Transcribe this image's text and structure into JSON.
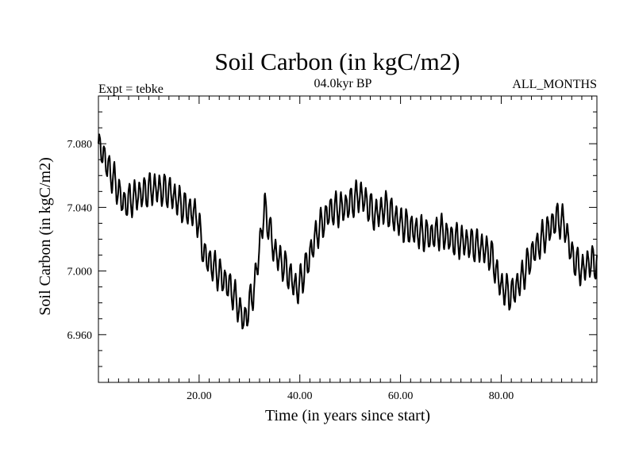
{
  "chart_data": {
    "type": "line",
    "title": "Soil Carbon (in kgC/m2)",
    "subtitle": "04.0kyr BP",
    "left_note": "Expt = tebke",
    "right_note": "ALL_MONTHS",
    "xlabel": "Time (in years since start)",
    "ylabel": "Soil Carbon (in kgC/m2)",
    "xlim": [
      0,
      99
    ],
    "ylim": [
      6.93,
      7.11
    ],
    "xticks": [
      20,
      40,
      60,
      80
    ],
    "xtick_labels": [
      "20.00",
      "40.00",
      "60.00",
      "80.00"
    ],
    "yticks": [
      6.96,
      7.0,
      7.04,
      7.08
    ],
    "ytick_labels": [
      "6.960",
      "7.000",
      "7.040",
      "7.080"
    ],
    "grid": false,
    "series": [
      {
        "name": "soil carbon",
        "seasonal_amplitude": 0.009,
        "cycle_length_years": 1,
        "baseline": {
          "x": [
            0,
            0.5,
            1.5,
            3,
            5,
            8,
            11,
            14,
            17,
            19.5,
            21,
            24,
            26.5,
            29,
            31,
            33,
            35,
            37.5,
            39.5,
            41.5,
            43.5,
            46,
            49,
            52,
            55,
            57,
            60,
            63,
            66,
            68,
            70,
            73,
            76,
            78,
            80,
            82,
            84,
            86,
            88.5,
            91,
            92.5,
            94,
            96,
            97.5,
            99
          ],
          "y": [
            7.075,
            7.078,
            7.068,
            7.058,
            7.042,
            7.048,
            7.052,
            7.05,
            7.04,
            7.035,
            7.01,
            6.998,
            6.988,
            6.968,
            6.99,
            7.04,
            7.012,
            7.0,
            6.988,
            7.005,
            7.025,
            7.038,
            7.04,
            7.048,
            7.035,
            7.04,
            7.03,
            7.025,
            7.022,
            7.025,
            7.02,
            7.018,
            7.015,
            7.01,
            6.99,
            6.985,
            6.995,
            7.01,
            7.022,
            7.033,
            7.03,
            7.01,
            7.0,
            7.006,
            7.005
          ]
        }
      }
    ]
  }
}
